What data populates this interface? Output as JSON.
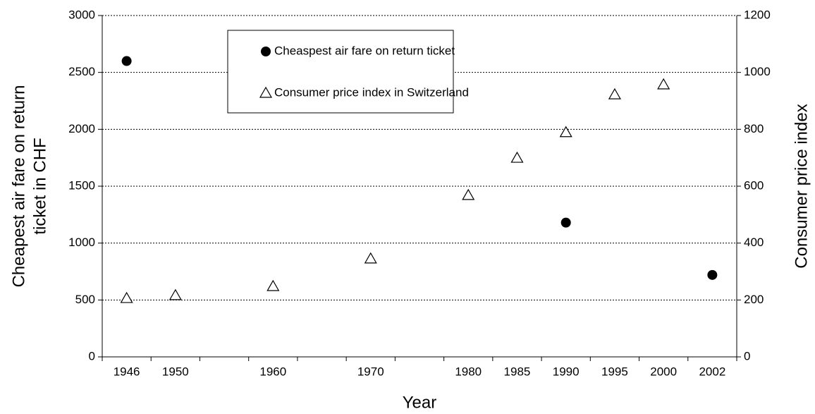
{
  "chart_data": {
    "type": "scatter",
    "categories": [
      "1946",
      "1950",
      null,
      "1960",
      null,
      "1970",
      null,
      "1980",
      "1985",
      "1990",
      "1995",
      "2000",
      "2002"
    ],
    "series": [
      {
        "name": "Cheaspest air fare on return ticket",
        "color": "#000000",
        "marker": "circle",
        "values": [
          2600,
          null,
          null,
          null,
          null,
          null,
          null,
          null,
          null,
          1180,
          null,
          null,
          720
        ]
      },
      {
        "name": "Consumer price index in Switzerland",
        "color": "#000000",
        "marker": "triangle",
        "axis": "y2",
        "values": [
          206,
          216,
          null,
          248,
          null,
          345,
          null,
          568,
          699,
          789,
          922,
          957,
          null
        ]
      }
    ],
    "xlabel": "Year",
    "ylabel": [
      "Cheapest air fare on return",
      "ticket in CHF"
    ],
    "y2label": "Consumer price index",
    "ylim": [
      0,
      3000
    ],
    "yticks": [
      0,
      500,
      1000,
      1500,
      2000,
      2500,
      3000
    ],
    "y2lim": [
      0,
      1200
    ],
    "y2ticks": [
      0,
      200,
      400,
      600,
      800,
      1000,
      1200
    ],
    "grid": true
  }
}
